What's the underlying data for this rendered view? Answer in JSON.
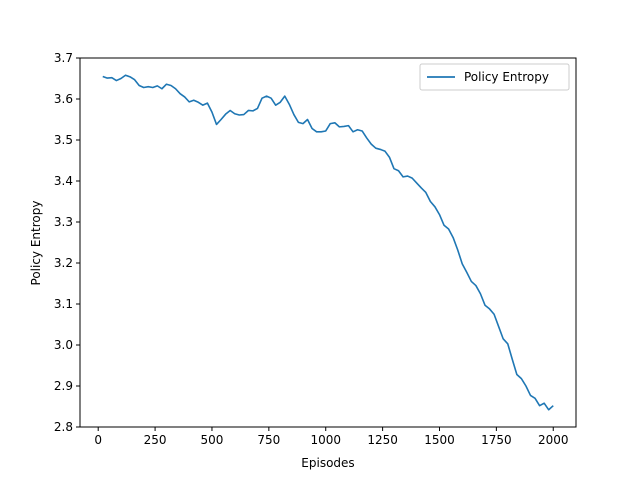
{
  "chart_data": {
    "type": "line",
    "title": "",
    "xlabel": "Episodes",
    "ylabel": "Policy Entropy",
    "xlim": [
      -80,
      2100
    ],
    "ylim": [
      2.8,
      3.7
    ],
    "xticks": [
      0,
      250,
      500,
      750,
      1000,
      1250,
      1500,
      1750,
      2000
    ],
    "yticks": [
      2.8,
      2.9,
      3.0,
      3.1,
      3.2,
      3.3,
      3.4,
      3.5,
      3.6,
      3.7
    ],
    "grid": false,
    "legend_position": "top-right",
    "series": [
      {
        "name": "Policy Entropy",
        "color": "#1f77b4",
        "x": [
          20,
          40,
          60,
          80,
          100,
          120,
          140,
          160,
          180,
          200,
          220,
          240,
          260,
          280,
          300,
          320,
          340,
          360,
          380,
          400,
          420,
          440,
          460,
          480,
          500,
          520,
          540,
          560,
          580,
          600,
          620,
          640,
          660,
          680,
          700,
          720,
          740,
          760,
          780,
          800,
          820,
          840,
          860,
          880,
          900,
          920,
          940,
          960,
          980,
          1000,
          1020,
          1040,
          1060,
          1080,
          1100,
          1120,
          1140,
          1160,
          1180,
          1200,
          1220,
          1240,
          1260,
          1280,
          1300,
          1320,
          1340,
          1360,
          1380,
          1400,
          1420,
          1440,
          1460,
          1480,
          1500,
          1520,
          1540,
          1560,
          1580,
          1600,
          1620,
          1640,
          1660,
          1680,
          1700,
          1720,
          1740,
          1760,
          1780,
          1800,
          1820,
          1840,
          1860,
          1880,
          1900,
          1920,
          1940,
          1960,
          1980,
          2000
        ],
        "y": [
          3.655,
          3.651,
          3.652,
          3.645,
          3.65,
          3.658,
          3.654,
          3.647,
          3.633,
          3.628,
          3.63,
          3.628,
          3.632,
          3.625,
          3.636,
          3.633,
          3.625,
          3.613,
          3.605,
          3.593,
          3.597,
          3.592,
          3.585,
          3.59,
          3.568,
          3.538,
          3.55,
          3.563,
          3.572,
          3.564,
          3.561,
          3.562,
          3.572,
          3.571,
          3.577,
          3.602,
          3.607,
          3.602,
          3.585,
          3.592,
          3.607,
          3.587,
          3.562,
          3.543,
          3.54,
          3.55,
          3.528,
          3.52,
          3.52,
          3.522,
          3.54,
          3.542,
          3.532,
          3.533,
          3.535,
          3.52,
          3.525,
          3.522,
          3.505,
          3.49,
          3.48,
          3.477,
          3.473,
          3.458,
          3.43,
          3.425,
          3.41,
          3.412,
          3.407,
          3.395,
          3.383,
          3.372,
          3.35,
          3.337,
          3.318,
          3.292,
          3.283,
          3.262,
          3.232,
          3.198,
          3.177,
          3.155,
          3.145,
          3.125,
          3.097,
          3.088,
          3.075,
          3.045,
          3.015,
          3.003,
          2.965,
          2.928,
          2.918,
          2.9,
          2.877,
          2.87,
          2.852,
          2.858,
          2.842,
          2.852
        ]
      }
    ]
  }
}
